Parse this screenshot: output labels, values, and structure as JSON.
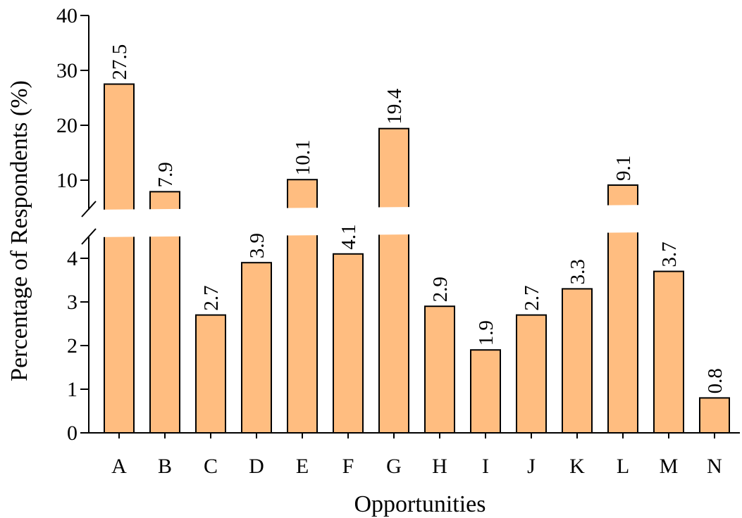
{
  "chart_data": {
    "type": "bar",
    "title": "",
    "xlabel": "Opportunities",
    "ylabel": "Percentage of Respondents (%)",
    "categories": [
      "A",
      "B",
      "C",
      "D",
      "E",
      "F",
      "G",
      "H",
      "I",
      "J",
      "K",
      "L",
      "M",
      "N"
    ],
    "values": [
      27.5,
      7.9,
      2.7,
      3.9,
      10.1,
      4.1,
      19.4,
      2.9,
      1.9,
      2.7,
      3.3,
      9.1,
      3.7,
      0.8
    ],
    "value_labels": [
      "27.5",
      "7.9",
      "2.7",
      "3.9",
      "10.1",
      "4.1",
      "19.4",
      "2.9",
      "1.9",
      "2.7",
      "3.3",
      "9.1",
      "3.7",
      "0.8"
    ],
    "y_axis_break": true,
    "y_lower_range": [
      0,
      5
    ],
    "y_upper_range": [
      5,
      40
    ],
    "y_lower_ticks": [
      "0",
      "1",
      "2",
      "3",
      "4"
    ],
    "y_upper_ticks": [
      "10",
      "20",
      "30",
      "40"
    ],
    "grid": false,
    "legend": "none",
    "bar_color": "#ffbd80",
    "bar_edge_color": "#000000"
  }
}
